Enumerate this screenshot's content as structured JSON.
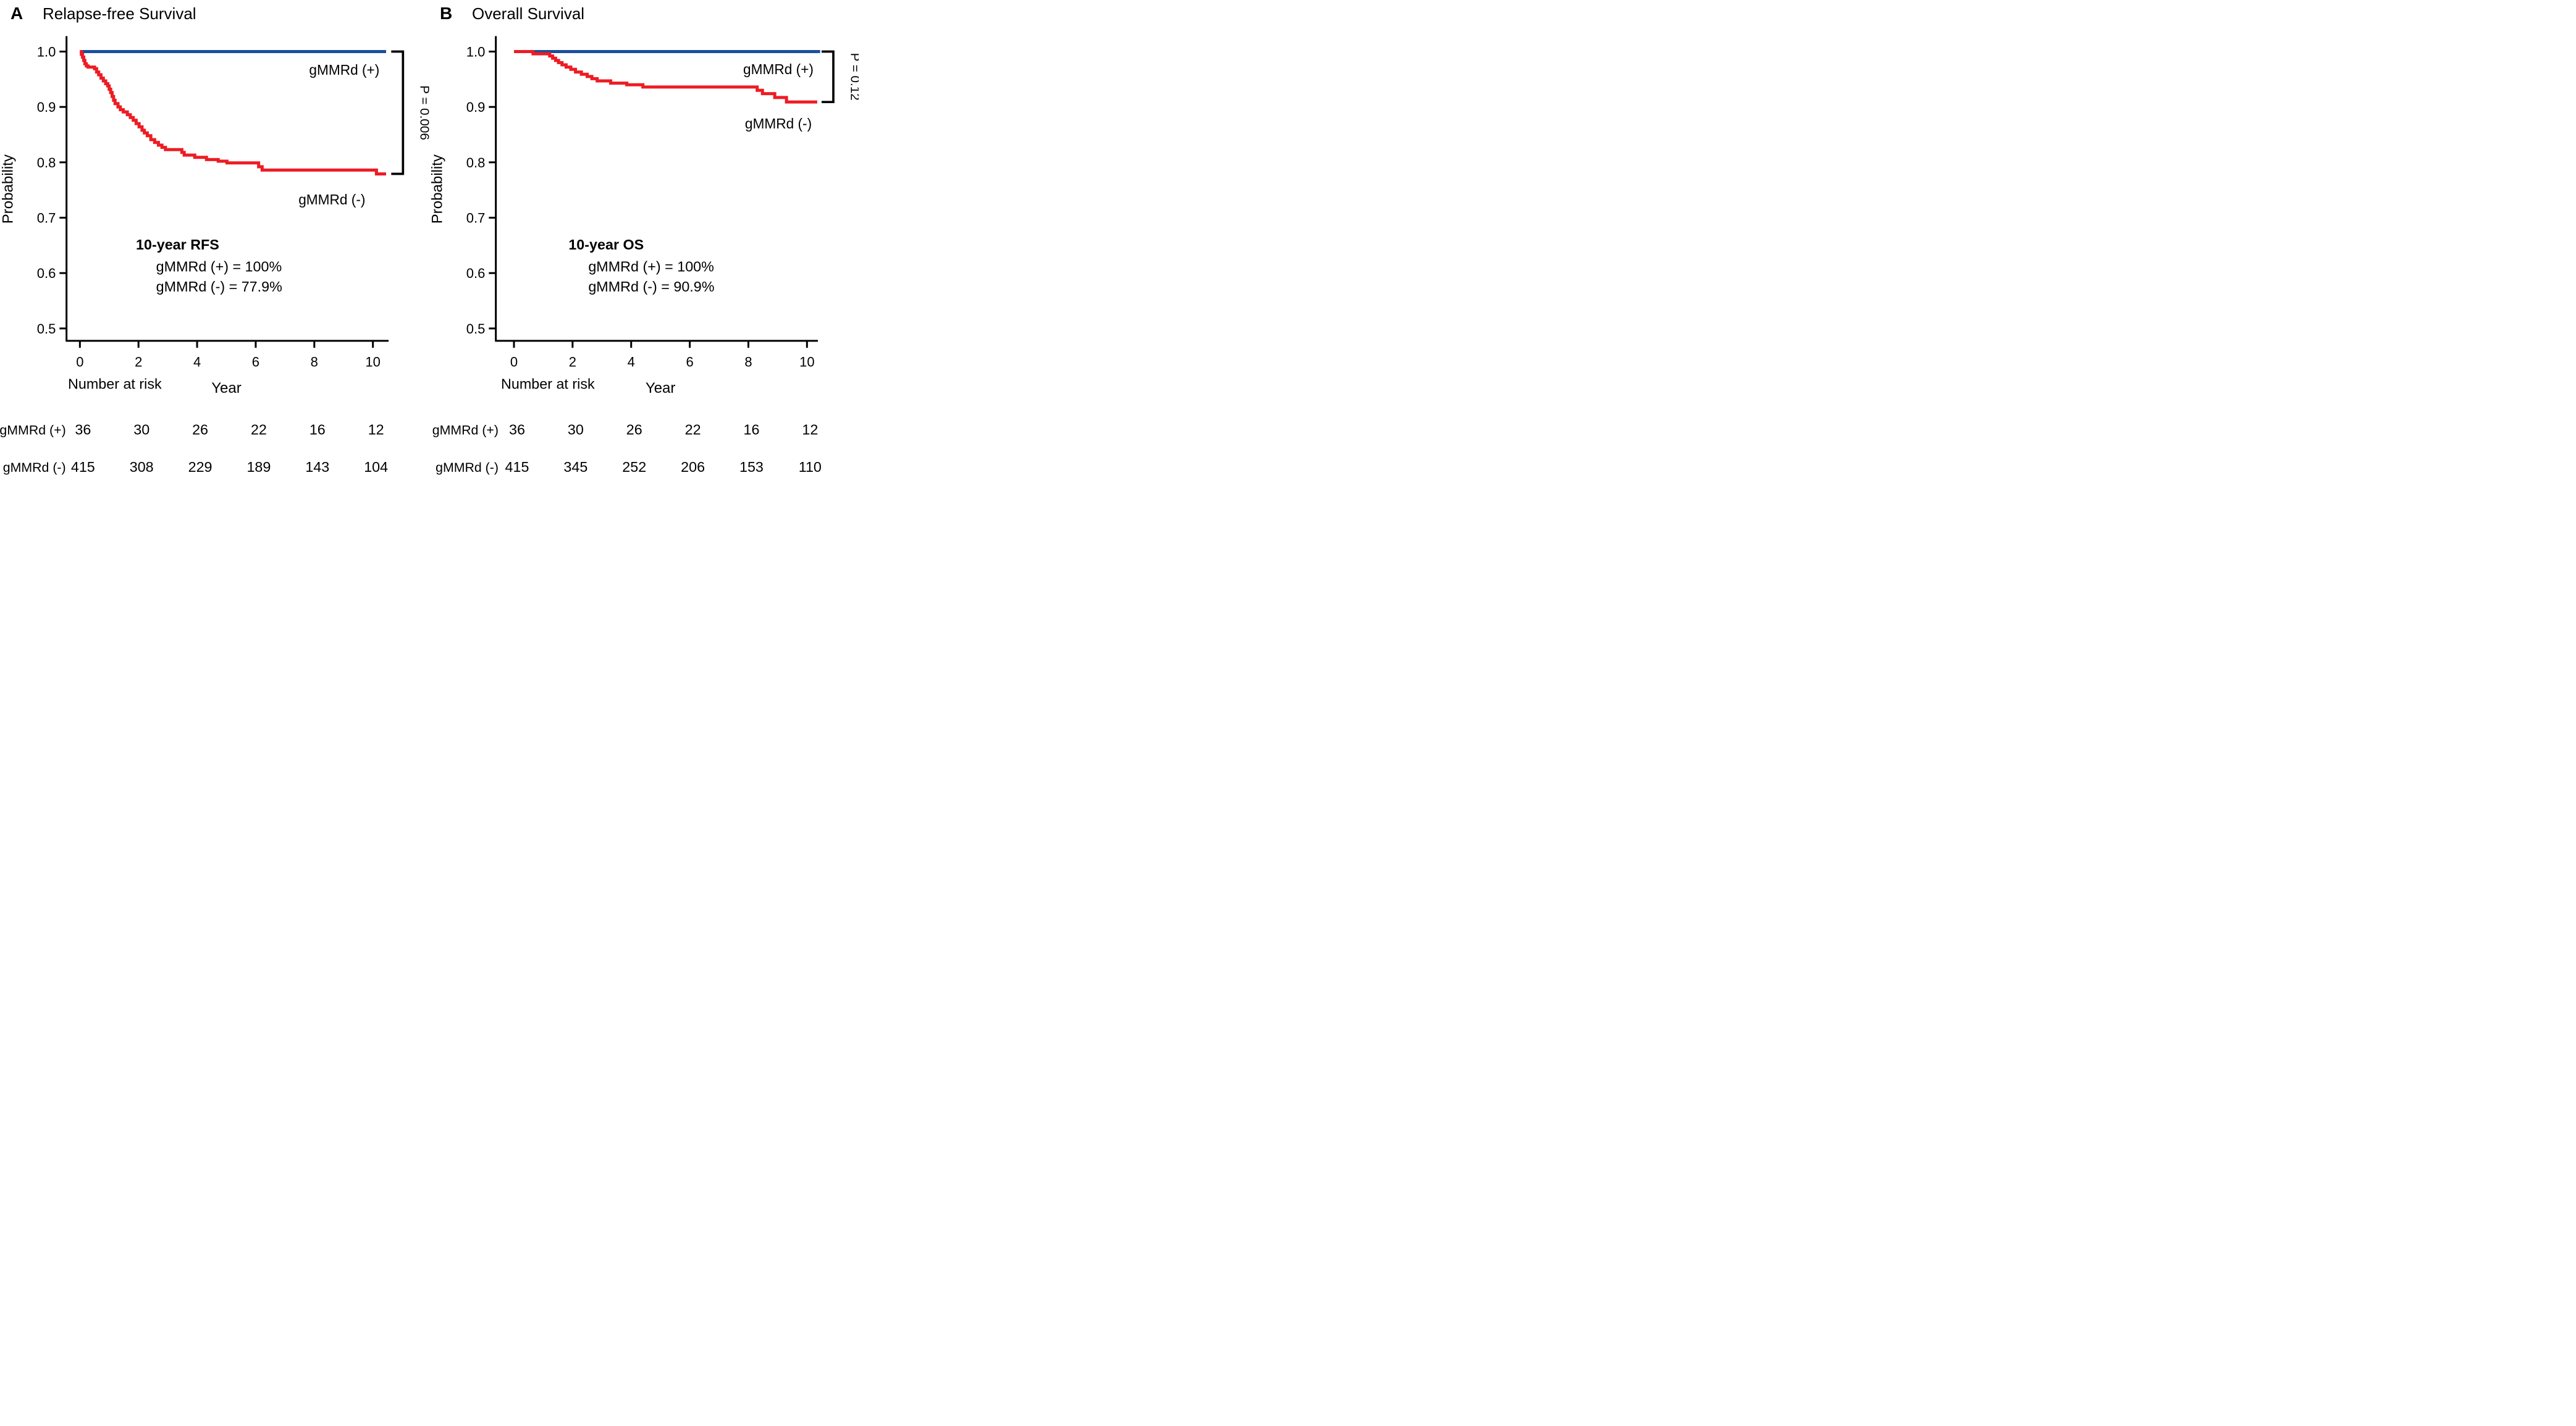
{
  "figure": {
    "colors": {
      "blue": "#1b4f9c",
      "red": "#ed1c24",
      "black": "#000000"
    },
    "panels": [
      {
        "id": "a",
        "letter": "A",
        "title": "Relapse-free Survival",
        "ylabel": "Probability",
        "xlabel": "Year",
        "p_label": "P = 0.006",
        "curve_label_positive": "gMMRd (+)",
        "curve_label_negative": "gMMRd (-)",
        "annotation": {
          "heading": "10-year RFS",
          "line_positive": "gMMRd (+) = 100%",
          "line_negative": "gMMRd (-) = 77.9%"
        },
        "risk_table": {
          "heading": "Number at risk",
          "rows": [
            {
              "label": "gMMRd (+)",
              "color_key": "blue",
              "counts": [
                36,
                30,
                26,
                22,
                16,
                12
              ]
            },
            {
              "label": "gMMRd (-)",
              "color_key": "red",
              "counts": [
                415,
                308,
                229,
                189,
                143,
                104
              ]
            }
          ]
        },
        "chart_data": {
          "type": "line",
          "title": "Relapse-free Survival",
          "xlabel": "Year",
          "ylabel": "Probability",
          "xlim": [
            0,
            10.5
          ],
          "ylim": [
            0.48,
            1.03
          ],
          "xticks": [
            0,
            2,
            4,
            6,
            8,
            10
          ],
          "yticks": [
            1.0,
            0.9,
            0.8,
            0.7,
            0.6,
            0.5
          ],
          "grid": false,
          "legend_position": "inline-labels",
          "series": [
            {
              "name": "gMMRd (+)",
              "color_key": "blue",
              "end_time": 10.45,
              "steps": [
                [
                  0,
                  1.0
                ]
              ]
            },
            {
              "name": "gMMRd (-)",
              "color_key": "red",
              "end_time": 10.45,
              "steps": [
                [
                  0.0,
                  1.0
                ],
                [
                  0.05,
                  0.995
                ],
                [
                  0.09,
                  0.99
                ],
                [
                  0.13,
                  0.984
                ],
                [
                  0.17,
                  0.978
                ],
                [
                  0.22,
                  0.974
                ],
                [
                  0.28,
                  0.972
                ],
                [
                  0.5,
                  0.969
                ],
                [
                  0.57,
                  0.963
                ],
                [
                  0.64,
                  0.958
                ],
                [
                  0.72,
                  0.952
                ],
                [
                  0.8,
                  0.947
                ],
                [
                  0.88,
                  0.942
                ],
                [
                  0.95,
                  0.938
                ],
                [
                  1.0,
                  0.932
                ],
                [
                  1.05,
                  0.926
                ],
                [
                  1.1,
                  0.919
                ],
                [
                  1.15,
                  0.912
                ],
                [
                  1.2,
                  0.906
                ],
                [
                  1.3,
                  0.9
                ],
                [
                  1.38,
                  0.895
                ],
                [
                  1.48,
                  0.891
                ],
                [
                  1.62,
                  0.886
                ],
                [
                  1.72,
                  0.881
                ],
                [
                  1.82,
                  0.876
                ],
                [
                  1.92,
                  0.87
                ],
                [
                  2.02,
                  0.864
                ],
                [
                  2.12,
                  0.858
                ],
                [
                  2.2,
                  0.853
                ],
                [
                  2.3,
                  0.848
                ],
                [
                  2.42,
                  0.841
                ],
                [
                  2.55,
                  0.836
                ],
                [
                  2.68,
                  0.831
                ],
                [
                  2.8,
                  0.827
                ],
                [
                  2.92,
                  0.823
                ],
                [
                  3.48,
                  0.818
                ],
                [
                  3.56,
                  0.813
                ],
                [
                  3.92,
                  0.809
                ],
                [
                  4.32,
                  0.805
                ],
                [
                  4.72,
                  0.802
                ],
                [
                  5.02,
                  0.799
                ],
                [
                  6.1,
                  0.792
                ],
                [
                  6.22,
                  0.786
                ],
                [
                  10.12,
                  0.779
                ]
              ]
            }
          ]
        }
      },
      {
        "id": "b",
        "letter": "B",
        "title": "Overall Survival",
        "ylabel": "Probability",
        "xlabel": "Year",
        "p_label": "P = 0.12",
        "curve_label_positive": "gMMRd (+)",
        "curve_label_negative": "gMMRd (-)",
        "annotation": {
          "heading": "10-year OS",
          "line_positive": "gMMRd (+) = 100%",
          "line_negative": "gMMRd (-) = 90.9%"
        },
        "risk_table": {
          "heading": "Number at risk",
          "rows": [
            {
              "label": "gMMRd (+)",
              "color_key": "blue",
              "counts": [
                36,
                30,
                26,
                22,
                16,
                12
              ]
            },
            {
              "label": "gMMRd (-)",
              "color_key": "red",
              "counts": [
                415,
                345,
                252,
                206,
                153,
                110
              ]
            }
          ]
        },
        "chart_data": {
          "type": "line",
          "title": "Overall Survival",
          "xlabel": "Year",
          "ylabel": "Probability",
          "xlim": [
            0,
            10.5
          ],
          "ylim": [
            0.48,
            1.03
          ],
          "xticks": [
            0,
            2,
            4,
            6,
            8,
            10
          ],
          "yticks": [
            1.0,
            0.9,
            0.8,
            0.7,
            0.6,
            0.5
          ],
          "grid": false,
          "legend_position": "inline-labels",
          "series": [
            {
              "name": "gMMRd (+)",
              "color_key": "blue",
              "end_time": 10.45,
              "steps": [
                [
                  0,
                  1.0
                ]
              ]
            },
            {
              "name": "gMMRd (-)",
              "color_key": "red",
              "end_time": 10.35,
              "steps": [
                [
                  0.0,
                  1.0
                ],
                [
                  0.65,
                  0.996
                ],
                [
                  1.22,
                  0.992
                ],
                [
                  1.32,
                  0.988
                ],
                [
                  1.42,
                  0.984
                ],
                [
                  1.52,
                  0.98
                ],
                [
                  1.64,
                  0.976
                ],
                [
                  1.78,
                  0.972
                ],
                [
                  1.94,
                  0.968
                ],
                [
                  2.1,
                  0.963
                ],
                [
                  2.3,
                  0.959
                ],
                [
                  2.5,
                  0.955
                ],
                [
                  2.66,
                  0.951
                ],
                [
                  2.84,
                  0.947
                ],
                [
                  3.3,
                  0.943
                ],
                [
                  3.85,
                  0.94
                ],
                [
                  4.4,
                  0.936
                ],
                [
                  8.3,
                  0.93
                ],
                [
                  8.48,
                  0.924
                ],
                [
                  8.9,
                  0.917
                ],
                [
                  9.3,
                  0.909
                ]
              ]
            }
          ]
        }
      }
    ]
  }
}
